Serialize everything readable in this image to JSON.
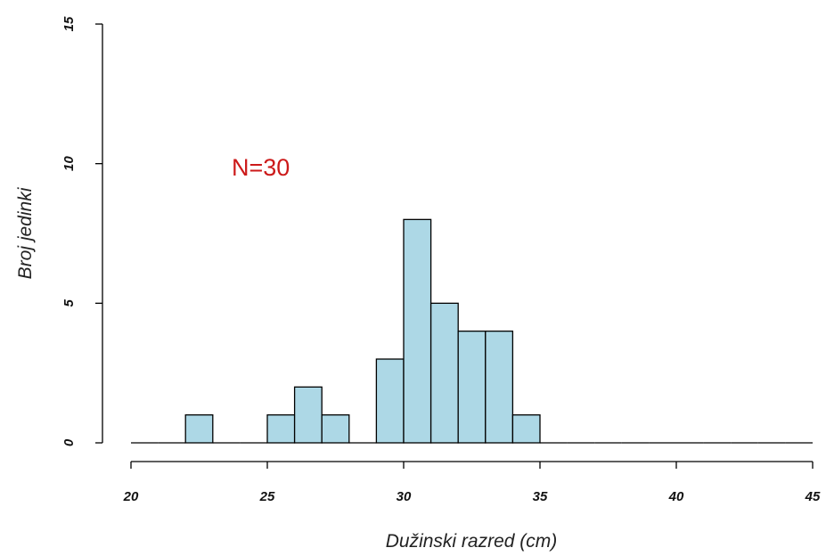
{
  "chart_data": {
    "type": "bar",
    "subtype": "histogram",
    "title": "",
    "xlabel": "Dužinski razred (cm)",
    "ylabel": "Broj jedinki",
    "xlim": [
      20,
      45
    ],
    "ylim": [
      0,
      15
    ],
    "x_ticks": [
      "20",
      "25",
      "30",
      "35",
      "40",
      "45"
    ],
    "y_ticks": [
      "0",
      "5",
      "10",
      "15"
    ],
    "bin_width": 1,
    "bin_starts": [
      20,
      21,
      22,
      23,
      24,
      25,
      26,
      27,
      28,
      29,
      30,
      31,
      32,
      33,
      34,
      35,
      36,
      37,
      38,
      39,
      40,
      41,
      42,
      43,
      44
    ],
    "values": [
      0,
      0,
      1,
      0,
      0,
      1,
      2,
      1,
      0,
      3,
      8,
      5,
      4,
      4,
      1,
      0,
      0,
      0,
      0,
      0,
      0,
      0,
      0,
      0,
      0
    ],
    "bar_color": "#add8e6",
    "grid": false,
    "annotation": {
      "text": "N=30",
      "color": "#cc1a1a"
    }
  }
}
